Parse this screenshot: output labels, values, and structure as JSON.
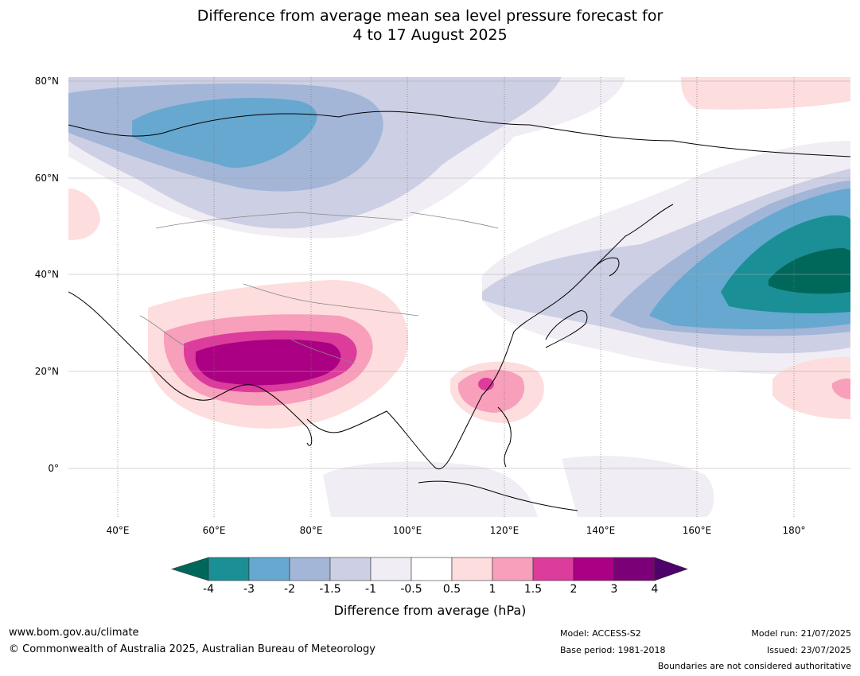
{
  "title_line1": "Difference from average mean sea level pressure forecast for",
  "title_line2": "4 to 17 August 2025",
  "lat_labels": [
    "80°N",
    "60°N",
    "40°N",
    "20°N",
    "0°"
  ],
  "lon_labels": [
    "40°E",
    "60°E",
    "80°E",
    "100°E",
    "120°E",
    "140°E",
    "160°E",
    "180°"
  ],
  "colorbar": {
    "title": "Difference from average (hPa)",
    "ticks": [
      "-4",
      "-3",
      "-2",
      "-1.5",
      "-1",
      "-0.5",
      "0.5",
      "1",
      "1.5",
      "2",
      "3",
      "4"
    ],
    "colors": [
      "#00685a",
      "#1a8f96",
      "#66a8d0",
      "#a3b6d8",
      "#cdd0e4",
      "#f1edf4",
      "#ffffff",
      "#fddddd",
      "#f79fbb",
      "#dc3c9c",
      "#ab0083",
      "#7b0078",
      "#4e006b"
    ]
  },
  "footer": {
    "website": "www.bom.gov.au/climate",
    "copyright": "© Commonwealth of Australia 2025, Australian Bureau of Meteorology",
    "model": "Model: ACCESS-S2",
    "base_period": "Base period: 1981-2018",
    "model_run": "Model run: 21/07/2025",
    "issued": "Issued: 23/07/2025",
    "boundaries": "Boundaries are not considered authoritative"
  }
}
